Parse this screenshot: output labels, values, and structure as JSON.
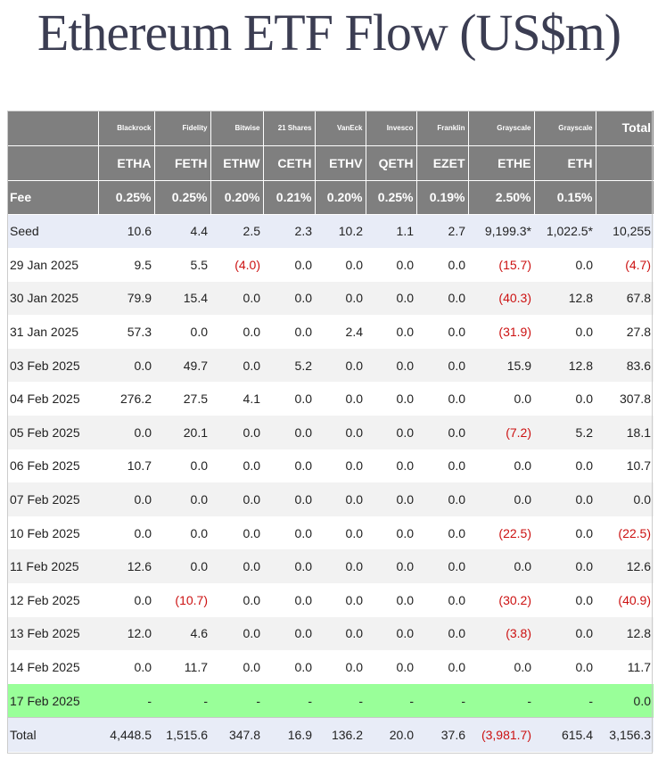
{
  "title": "Ethereum ETF Flow (US$m)",
  "issuers": [
    "Blackrock",
    "Fidelity",
    "Bitwise",
    "21 Shares",
    "VanEck",
    "Invesco",
    "Franklin",
    "Grayscale",
    "Grayscale"
  ],
  "total_label": "Total",
  "tickers": [
    "ETHA",
    "FETH",
    "ETHW",
    "CETH",
    "ETHV",
    "QETH",
    "EZET",
    "ETHE",
    "ETH"
  ],
  "fee_label": "Fee",
  "fees": [
    "0.25%",
    "0.25%",
    "0.20%",
    "0.21%",
    "0.20%",
    "0.25%",
    "0.19%",
    "2.50%",
    "0.15%"
  ],
  "rows": [
    {
      "label": "Seed",
      "values": [
        "10.6",
        "4.4",
        "2.5",
        "2.3",
        "10.2",
        "1.1",
        "2.7",
        "9,199.3*",
        "1,022.5*",
        "10,255"
      ]
    },
    {
      "label": "29 Jan 2025",
      "values": [
        "9.5",
        "5.5",
        "(4.0)",
        "0.0",
        "0.0",
        "0.0",
        "0.0",
        "(15.7)",
        "0.0",
        "(4.7)"
      ]
    },
    {
      "label": "30 Jan 2025",
      "values": [
        "79.9",
        "15.4",
        "0.0",
        "0.0",
        "0.0",
        "0.0",
        "0.0",
        "(40.3)",
        "12.8",
        "67.8"
      ]
    },
    {
      "label": "31 Jan 2025",
      "values": [
        "57.3",
        "0.0",
        "0.0",
        "0.0",
        "2.4",
        "0.0",
        "0.0",
        "(31.9)",
        "0.0",
        "27.8"
      ]
    },
    {
      "label": "03 Feb 2025",
      "values": [
        "0.0",
        "49.7",
        "0.0",
        "5.2",
        "0.0",
        "0.0",
        "0.0",
        "15.9",
        "12.8",
        "83.6"
      ]
    },
    {
      "label": "04 Feb 2025",
      "values": [
        "276.2",
        "27.5",
        "4.1",
        "0.0",
        "0.0",
        "0.0",
        "0.0",
        "0.0",
        "0.0",
        "307.8"
      ]
    },
    {
      "label": "05 Feb 2025",
      "values": [
        "0.0",
        "20.1",
        "0.0",
        "0.0",
        "0.0",
        "0.0",
        "0.0",
        "(7.2)",
        "5.2",
        "18.1"
      ]
    },
    {
      "label": "06 Feb 2025",
      "values": [
        "10.7",
        "0.0",
        "0.0",
        "0.0",
        "0.0",
        "0.0",
        "0.0",
        "0.0",
        "0.0",
        "10.7"
      ]
    },
    {
      "label": "07 Feb 2025",
      "values": [
        "0.0",
        "0.0",
        "0.0",
        "0.0",
        "0.0",
        "0.0",
        "0.0",
        "0.0",
        "0.0",
        "0.0"
      ]
    },
    {
      "label": "10 Feb 2025",
      "values": [
        "0.0",
        "0.0",
        "0.0",
        "0.0",
        "0.0",
        "0.0",
        "0.0",
        "(22.5)",
        "0.0",
        "(22.5)"
      ]
    },
    {
      "label": "11 Feb 2025",
      "values": [
        "12.6",
        "0.0",
        "0.0",
        "0.0",
        "0.0",
        "0.0",
        "0.0",
        "0.0",
        "0.0",
        "12.6"
      ]
    },
    {
      "label": "12 Feb 2025",
      "values": [
        "0.0",
        "(10.7)",
        "0.0",
        "0.0",
        "0.0",
        "0.0",
        "0.0",
        "(30.2)",
        "0.0",
        "(40.9)"
      ]
    },
    {
      "label": "13 Feb 2025",
      "values": [
        "12.0",
        "4.6",
        "0.0",
        "0.0",
        "0.0",
        "0.0",
        "0.0",
        "(3.8)",
        "0.0",
        "12.8"
      ]
    },
    {
      "label": "14 Feb 2025",
      "values": [
        "0.0",
        "11.7",
        "0.0",
        "0.0",
        "0.0",
        "0.0",
        "0.0",
        "0.0",
        "0.0",
        "11.7"
      ]
    },
    {
      "label": "17 Feb 2025",
      "values": [
        "-",
        "-",
        "-",
        "-",
        "-",
        "-",
        "-",
        "-",
        "-",
        "0.0"
      ]
    },
    {
      "label": "Total",
      "values": [
        "4,448.5",
        "1,515.6",
        "347.8",
        "16.9",
        "136.2",
        "20.0",
        "37.6",
        "(3,981.7)",
        "615.4",
        "3,156.3"
      ]
    }
  ],
  "colors": {
    "header_bg": "#7f7f7f",
    "negative": "#cc1111",
    "highlight_row": "#99ff99",
    "title": "#3b3d52"
  }
}
